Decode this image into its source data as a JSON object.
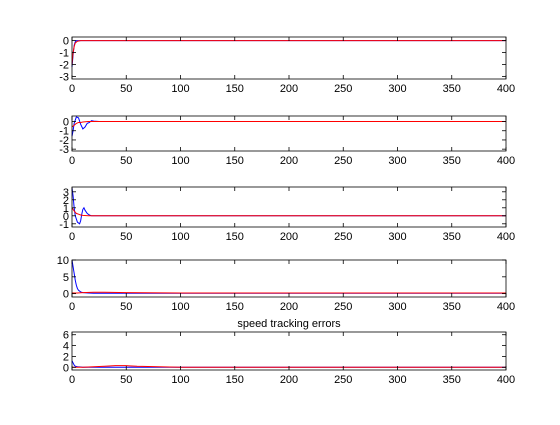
{
  "figure": {
    "annotation": "speed tracking errors"
  },
  "chart_data": [
    {
      "type": "line",
      "xlim": [
        0,
        400
      ],
      "ylim": [
        -3.2,
        0.3
      ],
      "xticks": [
        0,
        50,
        100,
        150,
        200,
        250,
        300,
        350,
        400
      ],
      "xtick_labels": [
        "0",
        "50",
        "100",
        "150",
        "200",
        "250",
        "300",
        "350",
        "400"
      ],
      "yticks": [
        -3,
        -2,
        -1,
        0
      ],
      "ytick_labels": [
        "-3",
        "-2",
        "-1",
        "0"
      ],
      "grid": false,
      "series": [
        {
          "color": "#0000ff",
          "x": [
            0,
            1,
            2,
            3,
            4,
            6,
            10,
            20,
            50,
            100,
            400
          ],
          "y": [
            -2.2,
            -1.2,
            -0.4,
            -0.1,
            0.0,
            0.0,
            0.0,
            0.0,
            0.0,
            0.0,
            0.0
          ]
        },
        {
          "color": "#ff0000",
          "x": [
            0,
            1,
            2,
            3,
            5,
            8,
            15,
            30,
            100,
            400
          ],
          "y": [
            -2.0,
            -1.0,
            -0.5,
            -0.2,
            -0.05,
            0.0,
            0.0,
            0.0,
            0.0,
            0.0
          ]
        }
      ]
    },
    {
      "type": "line",
      "xlim": [
        0,
        400
      ],
      "ylim": [
        -3.2,
        0.6
      ],
      "xticks": [
        0,
        50,
        100,
        150,
        200,
        250,
        300,
        350,
        400
      ],
      "xtick_labels": [
        "0",
        "50",
        "100",
        "150",
        "200",
        "250",
        "300",
        "350",
        "400"
      ],
      "yticks": [
        -3,
        -2,
        -1,
        0
      ],
      "ytick_labels": [
        "-3",
        "-2",
        "-1",
        "0"
      ],
      "grid": false,
      "series": [
        {
          "color": "#0000ff",
          "x": [
            0,
            1,
            2,
            4,
            6,
            8,
            10,
            12,
            14,
            16,
            18,
            20,
            25,
            30,
            50,
            100,
            400
          ],
          "y": [
            -1.6,
            -1.0,
            -0.2,
            0.5,
            0.4,
            -0.3,
            -0.8,
            -0.6,
            -0.2,
            -0.1,
            0.1,
            0.05,
            0.0,
            0.0,
            0.0,
            0.0,
            0.0
          ]
        },
        {
          "color": "#ff0000",
          "x": [
            0,
            2,
            4,
            6,
            8,
            10,
            15,
            20,
            40,
            100,
            400
          ],
          "y": [
            -0.6,
            -0.4,
            -0.2,
            -0.1,
            -0.1,
            -0.05,
            0.0,
            0.0,
            0.0,
            0.0,
            0.0
          ]
        }
      ]
    },
    {
      "type": "line",
      "xlim": [
        0,
        400
      ],
      "ylim": [
        -1.4,
        3.6
      ],
      "xticks": [
        0,
        50,
        100,
        150,
        200,
        250,
        300,
        350,
        400
      ],
      "xtick_labels": [
        "0",
        "50",
        "100",
        "150",
        "200",
        "250",
        "300",
        "350",
        "400"
      ],
      "yticks": [
        -1,
        0,
        1,
        2,
        3
      ],
      "ytick_labels": [
        "-1",
        "0",
        "1",
        "2",
        "3"
      ],
      "grid": false,
      "series": [
        {
          "color": "#0000ff",
          "x": [
            0,
            1,
            2,
            3,
            5,
            7,
            8,
            9,
            10,
            11,
            12,
            14,
            16,
            18,
            20,
            25,
            30,
            50,
            100,
            400
          ],
          "y": [
            3.5,
            2.5,
            1.0,
            0.0,
            -0.8,
            -1.0,
            -0.6,
            0.2,
            0.8,
            1.0,
            0.7,
            0.3,
            0.1,
            0.0,
            0.0,
            0.0,
            0.0,
            0.0,
            0.0,
            0.0
          ]
        },
        {
          "color": "#ff0000",
          "x": [
            0,
            2,
            4,
            6,
            8,
            10,
            15,
            20,
            40,
            100,
            400
          ],
          "y": [
            1.0,
            0.6,
            0.3,
            0.2,
            0.1,
            0.05,
            0.0,
            0.0,
            0.0,
            0.0,
            0.0
          ]
        }
      ]
    },
    {
      "type": "line",
      "xlim": [
        0,
        400
      ],
      "ylim": [
        -1,
        10
      ],
      "xticks": [
        0,
        50,
        100,
        150,
        200,
        250,
        300,
        350,
        400
      ],
      "xtick_labels": [
        "0",
        "50",
        "100",
        "150",
        "200",
        "250",
        "300",
        "350",
        "400"
      ],
      "yticks": [
        0,
        5,
        10
      ],
      "ytick_labels": [
        "0",
        "5",
        "10"
      ],
      "grid": false,
      "series": [
        {
          "color": "#0000ff",
          "x": [
            0,
            1,
            2,
            3,
            4,
            5,
            6,
            8,
            10,
            15,
            20,
            30,
            50,
            100,
            200,
            400
          ],
          "y": [
            10,
            8.0,
            6.0,
            4.0,
            2.5,
            1.5,
            1.0,
            0.5,
            0.3,
            0.2,
            0.1,
            0.1,
            0.1,
            0.1,
            0.1,
            0.1
          ]
        },
        {
          "color": "#ff0000",
          "x": [
            0,
            5,
            10,
            20,
            30,
            50,
            100,
            200,
            300,
            400
          ],
          "y": [
            0.2,
            0.2,
            0.3,
            0.4,
            0.4,
            0.3,
            0.2,
            0.2,
            0.2,
            0.2
          ]
        }
      ]
    },
    {
      "type": "line",
      "title": "speed tracking errors",
      "xlim": [
        0,
        400
      ],
      "ylim": [
        -0.5,
        6.5
      ],
      "xticks": [
        0,
        50,
        100,
        150,
        200,
        250,
        300,
        350,
        400
      ],
      "xtick_labels": [
        "0",
        "50",
        "100",
        "150",
        "200",
        "250",
        "300",
        "350",
        "400"
      ],
      "yticks": [
        0,
        2,
        4,
        6
      ],
      "ytick_labels": [
        "0",
        "2",
        "4",
        "6"
      ],
      "grid": false,
      "series": [
        {
          "color": "#0000ff",
          "x": [
            0,
            1,
            2,
            3,
            5,
            8,
            10,
            20,
            50,
            100,
            400
          ],
          "y": [
            1.2,
            0.8,
            0.4,
            0.2,
            0.1,
            0.05,
            0.0,
            0.0,
            0.0,
            0.0,
            0.0
          ]
        },
        {
          "color": "#ff0000",
          "x": [
            0,
            5,
            10,
            20,
            30,
            40,
            50,
            60,
            80,
            100,
            150,
            200,
            400
          ],
          "y": [
            0.0,
            0.0,
            0.0,
            0.1,
            0.2,
            0.3,
            0.3,
            0.2,
            0.1,
            0.0,
            0.0,
            0.0,
            0.0
          ]
        }
      ]
    }
  ]
}
